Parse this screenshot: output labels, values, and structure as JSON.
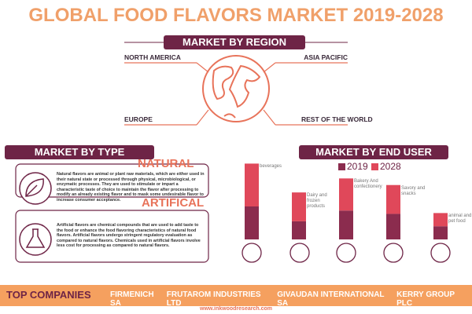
{
  "header": {
    "title": "GLOBAL FOOD FLAVORS MARKET 2019-2028"
  },
  "region": {
    "heading": "MARKET BY REGION",
    "regions": [
      "NORTH AMERICA",
      "ASIA PACIFIC",
      "EUROPE",
      "REST OF THE WORLD"
    ]
  },
  "type_section": {
    "heading": "MARKET BY TYPE",
    "items": [
      {
        "name": "NATURAL",
        "text": "Natural flavors are animal or plant raw materials, which are either used in their natural state or processed through physical, microbiological, or enzymatic processes. They are used to stimulate or impart a characteristic taste of choice to maintain the flavor after processing to modify an already existing flavor and to mask some undesirable flavor to increase consumer acceptance."
      },
      {
        "name": "ARTIFICAL",
        "text": "Artificial flavors are chemical compounds that are used to add taste to the food or enhance the food flavoring characteristics of natural food flavors. Artificial flavors undergo stringent regulatory evaluation as compared to natural flavors. Chemicals used in artificial flavors involve less cost for processing as compared to natural flavors."
      }
    ]
  },
  "end_user": {
    "heading": "MARKET BY END USER"
  },
  "chart_data": {
    "type": "bar",
    "stacked": true,
    "categories": [
      "beverages",
      "Dairy and frozen products",
      "Bakery And confectionery",
      "Savory and snacks",
      "animal and pet food"
    ],
    "series": [
      {
        "name": "2019",
        "color": "#8b2c4e",
        "values": [
          40,
          22,
          35,
          31,
          16
        ]
      },
      {
        "name": "2028",
        "color": "#e0485a",
        "values": [
          52,
          35,
          39,
          35,
          16
        ]
      }
    ],
    "ylim": [
      0,
      100
    ]
  },
  "footer": {
    "heading": "TOP COMPANIES",
    "companies": [
      "FIRMENICH SA",
      "FRUTAROM INDUSTRIES LTD",
      "GIVAUDAN INTERNATIONAL SA",
      "KERRY GROUP PLC"
    ],
    "url": "www.inkwoodresearch.com"
  }
}
